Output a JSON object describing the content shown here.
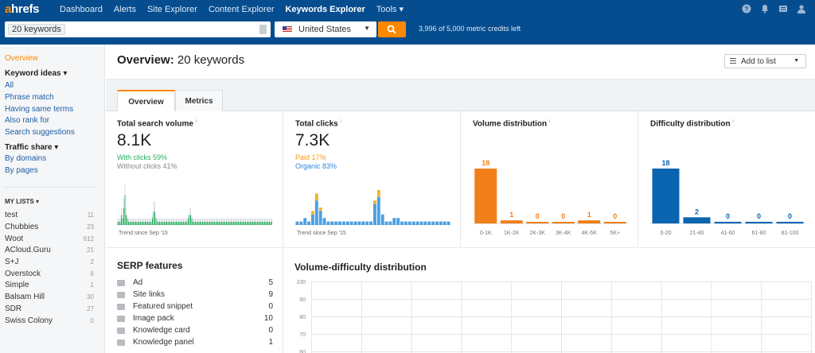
{
  "nav": {
    "logo_accent": "a",
    "logo_rest": "hrefs",
    "links": [
      "Dashboard",
      "Alerts",
      "Site Explorer",
      "Content Explorer",
      "Keywords Explorer",
      "Tools ▾"
    ],
    "active_index": 4,
    "icons": [
      "help-icon",
      "bell-icon",
      "message-icon",
      "user-icon"
    ]
  },
  "search": {
    "keyword_tag": "20 keywords",
    "country": "United States",
    "credits": "3,996 of 5,000 metric credits left"
  },
  "sidebar": {
    "overview": "Overview",
    "keyword_ideas": "Keyword ideas ▾",
    "ideas": [
      "All",
      "Phrase match",
      "Having same terms",
      "Also rank for",
      "Search suggestions"
    ],
    "traffic_share": "Traffic share ▾",
    "traffic": [
      "By domains",
      "By pages"
    ],
    "my_lists": "MY LISTS ▾",
    "lists": [
      {
        "name": "test",
        "count": "11"
      },
      {
        "name": "Chubbies",
        "count": "23"
      },
      {
        "name": "Woot",
        "count": "612"
      },
      {
        "name": "ACloud.Guru",
        "count": "21"
      },
      {
        "name": "S+J",
        "count": "2"
      },
      {
        "name": "Overstock",
        "count": "6"
      },
      {
        "name": "Simple",
        "count": "1"
      },
      {
        "name": "Balsam Hill",
        "count": "30"
      },
      {
        "name": "SDR",
        "count": "27"
      },
      {
        "name": "Swiss Colony",
        "count": "0"
      }
    ]
  },
  "header": {
    "title_bold": "Overview:",
    "title_rest": "20 keywords",
    "add_to_list": "Add to list"
  },
  "tabs": [
    {
      "label": "Overview"
    },
    {
      "label": "Metrics"
    }
  ],
  "panels": {
    "search_volume": {
      "title": "Total search volume",
      "value": "8.1K",
      "sub1": "With clicks 59%",
      "sub2": "Without clicks 41%",
      "trend": "Trend since Sep '15"
    },
    "clicks": {
      "title": "Total clicks",
      "value": "7.3K",
      "sub1": "Paid 17%",
      "sub2": "Organic 83%",
      "trend": "Trend since Sep '15"
    },
    "volume_dist": {
      "title": "Volume distribution"
    },
    "difficulty_dist": {
      "title": "Difficulty distribution"
    }
  },
  "serp": {
    "title": "SERP features",
    "rows": [
      {
        "label": "Ad",
        "value": "5"
      },
      {
        "label": "Site links",
        "value": "9"
      },
      {
        "label": "Featured snippet",
        "value": "0"
      },
      {
        "label": "Image pack",
        "value": "10"
      },
      {
        "label": "Knowledge card",
        "value": "0"
      },
      {
        "label": "Knowledge panel",
        "value": "1"
      }
    ]
  },
  "vd": {
    "title": "Volume-difficulty distribution",
    "y_ticks": [
      "100",
      "90",
      "80",
      "70",
      "60"
    ]
  },
  "colors": {
    "nav_bg": "#054d8f",
    "accent": "#ff8800",
    "green": "#27ae60",
    "blue": "#4a9fe3",
    "gold": "#f0b429",
    "dark_blue": "#0a64b0"
  },
  "chart_data": [
    {
      "type": "bar",
      "title": "Total search volume trend",
      "series": [
        {
          "name": "With clicks",
          "values": [
            1,
            1,
            1,
            3,
            2,
            5,
            9,
            3,
            2,
            1,
            1,
            1,
            1,
            1,
            1,
            1,
            1,
            1,
            1,
            1,
            1,
            1,
            1,
            1,
            1,
            1,
            1,
            1,
            1,
            2,
            4,
            4,
            2,
            1,
            1,
            1,
            1,
            1,
            1,
            1,
            1,
            1,
            1,
            1,
            1,
            1,
            1,
            1,
            1,
            1,
            1,
            1,
            1,
            1,
            1,
            1,
            1,
            1,
            1,
            2,
            3,
            3,
            2,
            1,
            1,
            1,
            1,
            1,
            1,
            1,
            1,
            1,
            1,
            1,
            1,
            1,
            1,
            1,
            1,
            1,
            1,
            1,
            1,
            1,
            1,
            1,
            1,
            1,
            1,
            1,
            1,
            1,
            1,
            1,
            1,
            1,
            1,
            1,
            1,
            1,
            1,
            1,
            1,
            1,
            1,
            1,
            1,
            1,
            1,
            1,
            1,
            1,
            1,
            1,
            1,
            1,
            1,
            1,
            1,
            1,
            1,
            1,
            1,
            1,
            1,
            1,
            1,
            1,
            1,
            1
          ]
        },
        {
          "name": "Without clicks",
          "values": [
            1,
            1,
            1,
            2,
            1,
            3,
            3,
            2,
            1,
            1,
            1,
            1,
            1,
            1,
            1,
            1,
            1,
            1,
            1,
            1,
            1,
            1,
            1,
            1,
            1,
            1,
            1,
            1,
            1,
            1,
            3,
            3,
            1,
            1,
            1,
            1,
            1,
            1,
            1,
            1,
            1,
            1,
            1,
            1,
            1,
            1,
            1,
            1,
            1,
            1,
            1,
            1,
            1,
            1,
            1,
            1,
            1,
            1,
            1,
            1,
            2,
            2,
            1,
            1,
            1,
            1,
            1,
            1,
            1,
            1,
            1,
            1,
            1,
            1,
            1,
            1,
            1,
            1,
            1,
            1,
            1,
            1,
            1,
            1,
            1,
            1,
            1,
            1,
            1,
            1,
            1,
            1,
            1,
            1,
            1,
            1,
            1,
            1,
            1,
            1,
            1,
            1,
            1,
            1,
            1,
            1,
            1,
            1,
            1,
            1,
            1,
            1,
            1,
            1,
            1,
            1,
            1,
            1,
            1,
            1,
            1,
            1,
            1,
            1,
            1,
            1,
            1,
            1,
            1,
            1
          ]
        }
      ]
    },
    {
      "type": "bar",
      "title": "Total clicks trend",
      "series": [
        {
          "name": "Organic",
          "values": [
            1,
            1,
            2,
            1,
            3,
            7,
            4,
            2,
            1,
            1,
            1,
            1,
            1,
            1,
            1,
            1,
            1,
            1,
            1,
            1,
            6,
            8,
            3,
            1,
            1,
            2,
            2,
            1,
            1,
            1,
            1,
            1,
            1,
            1,
            1,
            1,
            1,
            1,
            1,
            1
          ]
        },
        {
          "name": "Paid",
          "values": [
            0,
            0,
            0,
            0,
            1,
            2,
            1,
            0,
            0,
            0,
            0,
            0,
            0,
            0,
            0,
            0,
            0,
            0,
            0,
            0,
            1,
            2,
            0,
            0,
            0,
            0,
            0,
            0,
            0,
            0,
            0,
            0,
            0,
            0,
            0,
            0,
            0,
            0,
            0,
            0
          ]
        }
      ]
    },
    {
      "type": "bar",
      "title": "Volume distribution",
      "categories": [
        "0-1K",
        "1K-2K",
        "2K-3K",
        "3K-4K",
        "4K-5K",
        "5K+"
      ],
      "values": [
        18,
        1,
        0,
        0,
        1,
        0
      ],
      "ylim": [
        0,
        18
      ]
    },
    {
      "type": "bar",
      "title": "Difficulty distribution",
      "categories": [
        "0-20",
        "21-40",
        "41-60",
        "61-80",
        "81-100"
      ],
      "values": [
        18,
        2,
        0,
        0,
        0
      ],
      "ylim": [
        0,
        18
      ]
    }
  ]
}
